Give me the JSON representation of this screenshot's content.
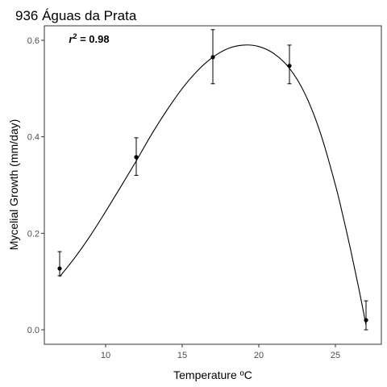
{
  "chart_data": {
    "type": "scatter",
    "title": "936 Águas da Prata",
    "xlabel": "Temperature ºC",
    "ylabel": "Mycelial Growth (mm/day)",
    "xlim": [
      6.0,
      28.0
    ],
    "ylim": [
      -0.03,
      0.63
    ],
    "x_ticks": [
      10,
      15,
      20,
      25
    ],
    "y_ticks": [
      0.0,
      0.2,
      0.4,
      0.6
    ],
    "x_tick_labels": [
      "10",
      "15",
      "20",
      "25"
    ],
    "y_tick_labels": [
      "0.0",
      "0.2",
      "0.4",
      "0.6"
    ],
    "grid": false,
    "series": [
      {
        "points": [
          {
            "x": 7,
            "y": 0.127,
            "err_low": 0.112,
            "err_high": 0.162
          },
          {
            "x": 12,
            "y": 0.358,
            "err_low": 0.32,
            "err_high": 0.398
          },
          {
            "x": 17,
            "y": 0.565,
            "err_low": 0.51,
            "err_high": 0.622
          },
          {
            "x": 22,
            "y": 0.547,
            "err_low": 0.51,
            "err_high": 0.59
          },
          {
            "x": 27,
            "y": 0.02,
            "err_low": 0.0,
            "err_high": 0.06
          }
        ]
      }
    ],
    "fit_curve": {
      "points": [
        {
          "x": 7.0,
          "y": 0.11
        },
        {
          "x": 8.0,
          "y": 0.15
        },
        {
          "x": 9.0,
          "y": 0.195
        },
        {
          "x": 10.0,
          "y": 0.245
        },
        {
          "x": 11.0,
          "y": 0.297
        },
        {
          "x": 12.0,
          "y": 0.35
        },
        {
          "x": 13.0,
          "y": 0.405
        },
        {
          "x": 14.0,
          "y": 0.455
        },
        {
          "x": 15.0,
          "y": 0.5
        },
        {
          "x": 16.0,
          "y": 0.537
        },
        {
          "x": 17.0,
          "y": 0.565
        },
        {
          "x": 18.0,
          "y": 0.583
        },
        {
          "x": 19.0,
          "y": 0.59
        },
        {
          "x": 20.0,
          "y": 0.587
        },
        {
          "x": 21.0,
          "y": 0.572
        },
        {
          "x": 22.0,
          "y": 0.542
        },
        {
          "x": 23.0,
          "y": 0.49
        },
        {
          "x": 24.0,
          "y": 0.41
        },
        {
          "x": 25.0,
          "y": 0.3
        },
        {
          "x": 25.5,
          "y": 0.235
        },
        {
          "x": 26.0,
          "y": 0.165
        },
        {
          "x": 26.5,
          "y": 0.09
        },
        {
          "x": 27.0,
          "y": 0.01
        }
      ]
    },
    "annotation": {
      "r_label": "r",
      "exponent": "2",
      "value_text": " = 0.98",
      "x": 7.6,
      "y": 0.595
    }
  }
}
